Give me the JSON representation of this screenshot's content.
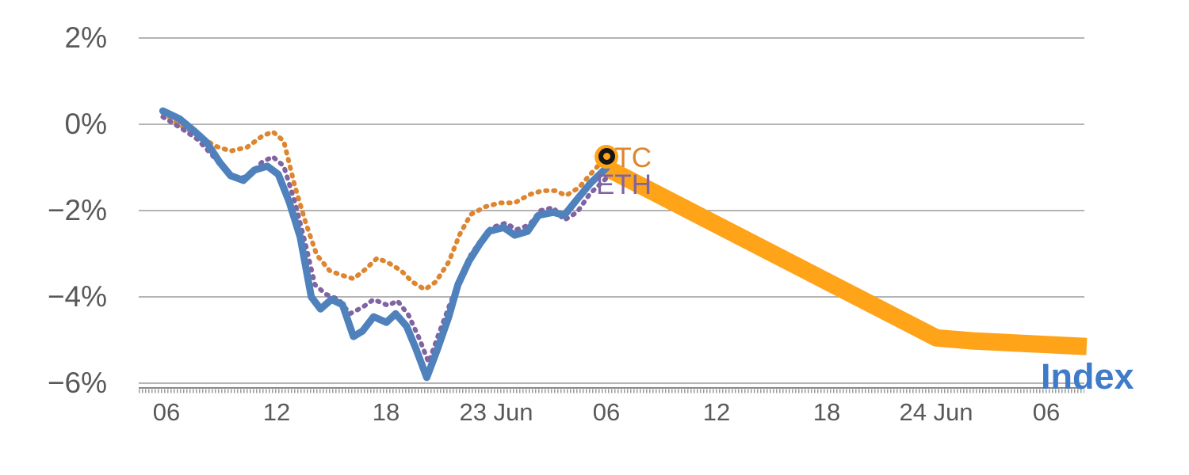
{
  "chart_data": {
    "type": "line",
    "title": "",
    "grid": "horizontal",
    "legend_position": "inline-end-of-line",
    "y_axis": {
      "label_format": "percent",
      "range": [
        -6.5,
        2.5
      ],
      "ticks": [
        {
          "value": 2,
          "label": "2%"
        },
        {
          "value": 0,
          "label": "0%"
        },
        {
          "value": -2,
          "label": "−2%"
        },
        {
          "value": -4,
          "label": "−4%"
        },
        {
          "value": -6,
          "label": "−6%"
        }
      ]
    },
    "x_axis": {
      "unit": "hours",
      "ticks": [
        {
          "hours": 0,
          "label": "06"
        },
        {
          "hours": 6,
          "label": "12"
        },
        {
          "hours": 12,
          "label": "18"
        },
        {
          "hours": 18,
          "label": "23 Jun"
        },
        {
          "hours": 24,
          "label": "06"
        },
        {
          "hours": 30,
          "label": "12"
        },
        {
          "hours": 36,
          "label": "18"
        },
        {
          "hours": 42,
          "label": "24 Jun"
        },
        {
          "hours": 48,
          "label": "06"
        }
      ]
    },
    "series": [
      {
        "name": "BTC",
        "color": "#DD8530",
        "style": "dotted",
        "width": 6,
        "points": [
          [
            -0.2,
            0.26
          ],
          [
            0.9,
            -0.06
          ],
          [
            1.8,
            -0.28
          ],
          [
            2.7,
            -0.51
          ],
          [
            3.5,
            -0.62
          ],
          [
            4.4,
            -0.53
          ],
          [
            5.2,
            -0.28
          ],
          [
            5.8,
            -0.17
          ],
          [
            6.4,
            -0.39
          ],
          [
            7.0,
            -1.43
          ],
          [
            7.6,
            -2.29
          ],
          [
            8.2,
            -3.03
          ],
          [
            8.9,
            -3.39
          ],
          [
            9.5,
            -3.49
          ],
          [
            10.2,
            -3.58
          ],
          [
            10.8,
            -3.38
          ],
          [
            11.5,
            -3.1
          ],
          [
            12.1,
            -3.21
          ],
          [
            12.8,
            -3.39
          ],
          [
            13.4,
            -3.65
          ],
          [
            14.1,
            -3.83
          ],
          [
            14.7,
            -3.65
          ],
          [
            15.4,
            -3.19
          ],
          [
            16.0,
            -2.55
          ],
          [
            16.6,
            -2.09
          ],
          [
            17.4,
            -1.91
          ],
          [
            18.2,
            -1.82
          ],
          [
            19.0,
            -1.82
          ],
          [
            19.8,
            -1.63
          ],
          [
            20.5,
            -1.54
          ],
          [
            21.2,
            -1.54
          ],
          [
            21.8,
            -1.65
          ],
          [
            22.5,
            -1.47
          ],
          [
            23.1,
            -1.17
          ],
          [
            24.0,
            -0.75
          ]
        ]
      },
      {
        "name": "ETH",
        "color": "#8064A2",
        "style": "dotted",
        "width": 6,
        "points": [
          [
            -0.2,
            0.17
          ],
          [
            0.8,
            -0.09
          ],
          [
            1.7,
            -0.35
          ],
          [
            2.5,
            -0.72
          ],
          [
            3.2,
            -1.06
          ],
          [
            3.9,
            -1.27
          ],
          [
            4.5,
            -1.19
          ],
          [
            5.2,
            -0.88
          ],
          [
            5.8,
            -0.75
          ],
          [
            6.4,
            -0.97
          ],
          [
            7.0,
            -1.8
          ],
          [
            7.6,
            -2.81
          ],
          [
            8.1,
            -3.72
          ],
          [
            8.7,
            -3.94
          ],
          [
            9.4,
            -4.06
          ],
          [
            10.0,
            -4.39
          ],
          [
            10.7,
            -4.24
          ],
          [
            11.3,
            -4.06
          ],
          [
            12.1,
            -4.2
          ],
          [
            12.6,
            -4.09
          ],
          [
            13.2,
            -4.42
          ],
          [
            13.8,
            -4.97
          ],
          [
            14.3,
            -5.52
          ],
          [
            14.8,
            -4.92
          ],
          [
            15.4,
            -4.24
          ],
          [
            16.0,
            -3.58
          ],
          [
            16.6,
            -3.03
          ],
          [
            17.2,
            -2.66
          ],
          [
            17.7,
            -2.4
          ],
          [
            18.5,
            -2.29
          ],
          [
            19.1,
            -2.44
          ],
          [
            19.8,
            -2.33
          ],
          [
            20.4,
            -2.0
          ],
          [
            21.1,
            -1.93
          ],
          [
            21.7,
            -2.22
          ],
          [
            22.4,
            -2.04
          ],
          [
            23.1,
            -1.61
          ],
          [
            24.0,
            -1.25
          ]
        ]
      },
      {
        "name": "Index",
        "color": "#4F81BD",
        "style": "solid",
        "width": 9,
        "points": [
          [
            -0.2,
            0.31
          ],
          [
            0.7,
            0.13
          ],
          [
            1.5,
            -0.15
          ],
          [
            2.2,
            -0.42
          ],
          [
            2.9,
            -0.88
          ],
          [
            3.5,
            -1.19
          ],
          [
            4.2,
            -1.3
          ],
          [
            4.8,
            -1.06
          ],
          [
            5.5,
            -0.97
          ],
          [
            6.1,
            -1.16
          ],
          [
            6.7,
            -1.8
          ],
          [
            7.3,
            -2.62
          ],
          [
            7.9,
            -4.0
          ],
          [
            8.4,
            -4.28
          ],
          [
            9.0,
            -4.06
          ],
          [
            9.6,
            -4.18
          ],
          [
            10.2,
            -4.92
          ],
          [
            10.7,
            -4.79
          ],
          [
            11.3,
            -4.46
          ],
          [
            12.0,
            -4.59
          ],
          [
            12.5,
            -4.39
          ],
          [
            13.1,
            -4.68
          ],
          [
            13.6,
            -5.19
          ],
          [
            14.2,
            -5.87
          ],
          [
            14.8,
            -5.19
          ],
          [
            15.4,
            -4.46
          ],
          [
            15.9,
            -3.72
          ],
          [
            16.5,
            -3.17
          ],
          [
            17.1,
            -2.77
          ],
          [
            17.6,
            -2.48
          ],
          [
            18.4,
            -2.39
          ],
          [
            19.0,
            -2.57
          ],
          [
            19.7,
            -2.48
          ],
          [
            20.3,
            -2.11
          ],
          [
            21.1,
            -2.04
          ],
          [
            21.7,
            -2.11
          ],
          [
            22.4,
            -1.74
          ],
          [
            23.1,
            -1.38
          ],
          [
            24.0,
            -1.01
          ]
        ]
      },
      {
        "name": "",
        "color": "#FFA318",
        "style": "band",
        "width": 22,
        "points": [
          [
            24.0,
            -1.01
          ],
          [
            42.0,
            -4.95
          ],
          [
            44.0,
            -5.02
          ],
          [
            50.2,
            -5.15
          ]
        ]
      }
    ],
    "end_marker": {
      "series": "BTC",
      "hours": 24.0,
      "value": -0.75,
      "fill_color": "#FFA318",
      "ring_color": "#161616"
    }
  }
}
